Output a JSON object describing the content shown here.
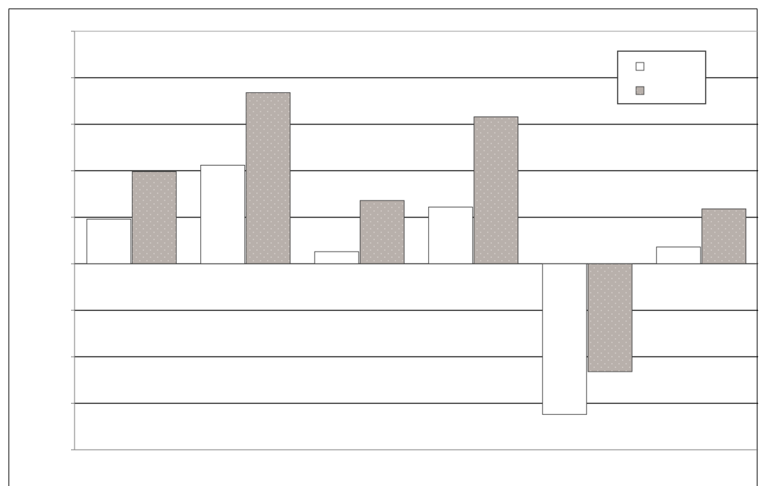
{
  "chart_data": {
    "type": "bar",
    "title": "",
    "xlabel": "",
    "ylabel": "",
    "categories": [
      "",
      "",
      "",
      "",
      "",
      ""
    ],
    "series": [
      {
        "values": [
          0.48,
          1.06,
          0.13,
          0.61,
          -1.62,
          0.18
        ],
        "color": "#ffffff"
      },
      {
        "values": [
          0.99,
          1.84,
          0.68,
          1.58,
          -1.16,
          0.59
        ],
        "color": "#b8b0ab"
      }
    ],
    "ylim": [
      -2,
      2.5
    ],
    "ytick_values": [
      -2,
      -1.5,
      -1,
      -0.5,
      0,
      0.5,
      1,
      1.5,
      2,
      2.5
    ],
    "ytick_labels": [
      "",
      "",
      "",
      "",
      "",
      "",
      "",
      "",
      "",
      ""
    ],
    "grid": true,
    "legend_position": "top-right"
  }
}
